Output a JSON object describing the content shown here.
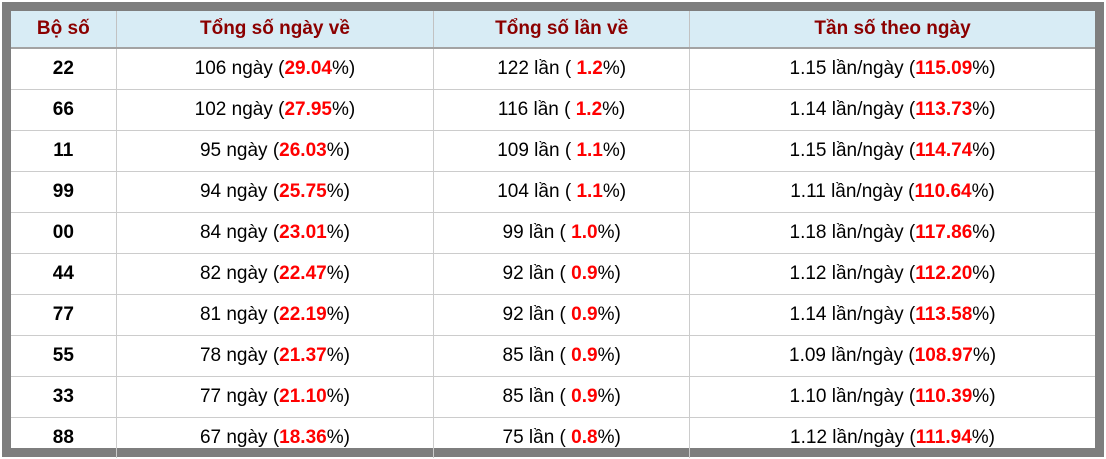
{
  "colors": {
    "header_bg": "#d8ecf5",
    "header_text": "#8b0000",
    "highlight_red": "#ff0000",
    "outer_border": "#7e7e7e",
    "grid_line": "#cccccc"
  },
  "labels": {
    "suffix": "%)"
  },
  "table": {
    "headers": {
      "pair": "Bộ số",
      "days": "Tổng số ngày về",
      "times": "Tổng số lần về",
      "freq": "Tần số theo ngày"
    },
    "rows": [
      {
        "pair": "22",
        "days_prefix": "106 ngày (",
        "days_pct": "29.04",
        "times_prefix": "122 lần ( ",
        "times_pct": "1.2",
        "freq_prefix": "1.15 lần/ngày (",
        "freq_pct": "115.09"
      },
      {
        "pair": "66",
        "days_prefix": "102 ngày (",
        "days_pct": "27.95",
        "times_prefix": "116 lần ( ",
        "times_pct": "1.2",
        "freq_prefix": "1.14 lần/ngày (",
        "freq_pct": "113.73"
      },
      {
        "pair": "11",
        "days_prefix": "95 ngày (",
        "days_pct": "26.03",
        "times_prefix": "109 lần ( ",
        "times_pct": "1.1",
        "freq_prefix": "1.15 lần/ngày (",
        "freq_pct": "114.74"
      },
      {
        "pair": "99",
        "days_prefix": "94 ngày (",
        "days_pct": "25.75",
        "times_prefix": "104 lần ( ",
        "times_pct": "1.1",
        "freq_prefix": "1.11 lần/ngày (",
        "freq_pct": "110.64"
      },
      {
        "pair": "00",
        "days_prefix": "84 ngày (",
        "days_pct": "23.01",
        "times_prefix": "99 lần ( ",
        "times_pct": "1.0",
        "freq_prefix": "1.18 lần/ngày (",
        "freq_pct": "117.86"
      },
      {
        "pair": "44",
        "days_prefix": "82 ngày (",
        "days_pct": "22.47",
        "times_prefix": "92 lần ( ",
        "times_pct": "0.9",
        "freq_prefix": "1.12 lần/ngày (",
        "freq_pct": "112.20"
      },
      {
        "pair": "77",
        "days_prefix": "81 ngày (",
        "days_pct": "22.19",
        "times_prefix": "92 lần ( ",
        "times_pct": "0.9",
        "freq_prefix": "1.14 lần/ngày (",
        "freq_pct": "113.58"
      },
      {
        "pair": "55",
        "days_prefix": "78 ngày (",
        "days_pct": "21.37",
        "times_prefix": "85 lần ( ",
        "times_pct": "0.9",
        "freq_prefix": "1.09 lần/ngày (",
        "freq_pct": "108.97"
      },
      {
        "pair": "33",
        "days_prefix": "77 ngày (",
        "days_pct": "21.10",
        "times_prefix": "85 lần ( ",
        "times_pct": "0.9",
        "freq_prefix": "1.10 lần/ngày (",
        "freq_pct": "110.39"
      },
      {
        "pair": "88",
        "days_prefix": "67 ngày (",
        "days_pct": "18.36",
        "times_prefix": "75 lần ( ",
        "times_pct": "0.8",
        "freq_prefix": "1.12 lần/ngày (",
        "freq_pct": "111.94"
      }
    ]
  }
}
